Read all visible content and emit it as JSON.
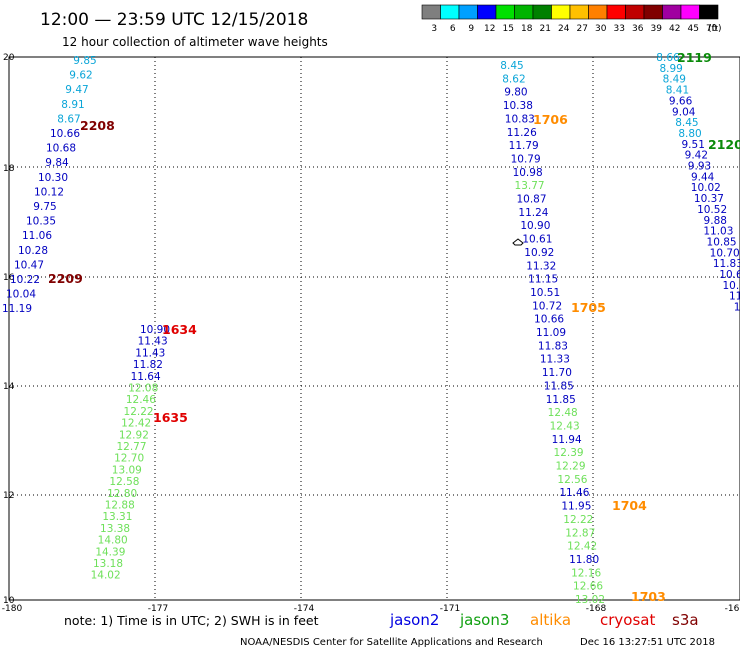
{
  "header": {
    "title": "12:00 — 23:59 UTC 12/15/2018",
    "subtitle": "12 hour collection of altimeter wave heights"
  },
  "legend": {
    "bins": [
      {
        "label": "3",
        "color": "#7f7f7f"
      },
      {
        "label": "6",
        "color": "#00ffff"
      },
      {
        "label": "9",
        "color": "#00a0ff"
      },
      {
        "label": "12",
        "color": "#0000ff"
      },
      {
        "label": "15",
        "color": "#00e000"
      },
      {
        "label": "18",
        "color": "#00b400"
      },
      {
        "label": "21",
        "color": "#008000"
      },
      {
        "label": "24",
        "color": "#ffff00"
      },
      {
        "label": "27",
        "color": "#ffc000"
      },
      {
        "label": "30",
        "color": "#ff8000"
      },
      {
        "label": "33",
        "color": "#ff0000"
      },
      {
        "label": "36",
        "color": "#c00000"
      },
      {
        "label": "39",
        "color": "#800000"
      },
      {
        "label": "42",
        "color": "#a000a0"
      },
      {
        "label": "45",
        "color": "#ff00ff"
      },
      {
        "label": "70",
        "color": "#000000"
      }
    ],
    "unit": "(ft)"
  },
  "axes": {
    "x_ticks": [
      "-180",
      "-177",
      "-174",
      "-171",
      "-168",
      "-16"
    ],
    "y_ticks": [
      "20",
      "18",
      "16",
      "14",
      "12",
      "10"
    ]
  },
  "colors": {
    "dark_blue": "#0000c0",
    "light_blue": "#0aa5d8",
    "light_green": "#6ee05a",
    "green": "#0a8a0a",
    "orange": "#ff8c00",
    "red": "#e00000",
    "maroon": "#800000"
  },
  "tracks": [
    {
      "pass_labels": [
        {
          "text": "2208",
          "color": "#800000"
        },
        {
          "text": "2209",
          "color": "#800000"
        }
      ],
      "points": [
        {
          "v": "9.85",
          "c": "#0aa5d8"
        },
        {
          "v": "9.62",
          "c": "#0aa5d8"
        },
        {
          "v": "9.47",
          "c": "#0aa5d8"
        },
        {
          "v": "8.91",
          "c": "#0aa5d8"
        },
        {
          "v": "8.67",
          "c": "#0aa5d8"
        },
        {
          "v": "10.66",
          "c": "#0000c0"
        },
        {
          "v": "10.68",
          "c": "#0000c0"
        },
        {
          "v": "9.84",
          "c": "#0000c0"
        },
        {
          "v": "10.30",
          "c": "#0000c0"
        },
        {
          "v": "10.12",
          "c": "#0000c0"
        },
        {
          "v": "9.75",
          "c": "#0000c0"
        },
        {
          "v": "10.35",
          "c": "#0000c0"
        },
        {
          "v": "11.06",
          "c": "#0000c0"
        },
        {
          "v": "10.28",
          "c": "#0000c0"
        },
        {
          "v": "10.47",
          "c": "#0000c0"
        },
        {
          "v": "10.22",
          "c": "#0000c0"
        },
        {
          "v": "10.04",
          "c": "#0000c0"
        },
        {
          "v": "11.19",
          "c": "#0000c0"
        }
      ]
    },
    {
      "pass_labels": [
        {
          "text": "1634",
          "color": "#e00000"
        },
        {
          "text": "1635",
          "color": "#e00000"
        }
      ],
      "points": [
        {
          "v": "10.90",
          "c": "#0000c0"
        },
        {
          "v": "11.43",
          "c": "#0000c0"
        },
        {
          "v": "11.43",
          "c": "#0000c0"
        },
        {
          "v": "11.82",
          "c": "#0000c0"
        },
        {
          "v": "11.64",
          "c": "#0000c0"
        },
        {
          "v": "12.08",
          "c": "#6ee05a"
        },
        {
          "v": "12.46",
          "c": "#6ee05a"
        },
        {
          "v": "12.22",
          "c": "#6ee05a"
        },
        {
          "v": "12.42",
          "c": "#6ee05a"
        },
        {
          "v": "12.92",
          "c": "#6ee05a"
        },
        {
          "v": "12.77",
          "c": "#6ee05a"
        },
        {
          "v": "12.70",
          "c": "#6ee05a"
        },
        {
          "v": "13.09",
          "c": "#6ee05a"
        },
        {
          "v": "12.58",
          "c": "#6ee05a"
        },
        {
          "v": "12.80",
          "c": "#6ee05a"
        },
        {
          "v": "12.88",
          "c": "#6ee05a"
        },
        {
          "v": "13.31",
          "c": "#6ee05a"
        },
        {
          "v": "13.38",
          "c": "#6ee05a"
        },
        {
          "v": "14.80",
          "c": "#6ee05a"
        },
        {
          "v": "14.39",
          "c": "#6ee05a"
        },
        {
          "v": "13.18",
          "c": "#6ee05a"
        },
        {
          "v": "14.02",
          "c": "#6ee05a"
        }
      ]
    },
    {
      "pass_labels": [
        {
          "text": "1706",
          "color": "#ff8c00"
        },
        {
          "text": "1705",
          "color": "#ff8c00"
        },
        {
          "text": "1704",
          "color": "#ff8c00"
        },
        {
          "text": "1703",
          "color": "#ff8c00"
        }
      ],
      "points": [
        {
          "v": "8.45",
          "c": "#0aa5d8"
        },
        {
          "v": "8.62",
          "c": "#0aa5d8"
        },
        {
          "v": "9.80",
          "c": "#0000c0"
        },
        {
          "v": "10.38",
          "c": "#0000c0"
        },
        {
          "v": "10.83",
          "c": "#0000c0"
        },
        {
          "v": "11.26",
          "c": "#0000c0"
        },
        {
          "v": "11.79",
          "c": "#0000c0"
        },
        {
          "v": "10.79",
          "c": "#0000c0"
        },
        {
          "v": "10.98",
          "c": "#0000c0"
        },
        {
          "v": "13.77",
          "c": "#6ee05a"
        },
        {
          "v": "10.87",
          "c": "#0000c0"
        },
        {
          "v": "11.24",
          "c": "#0000c0"
        },
        {
          "v": "10.90",
          "c": "#0000c0"
        },
        {
          "v": "10.61",
          "c": "#0000c0"
        },
        {
          "v": "10.92",
          "c": "#0000c0"
        },
        {
          "v": "11.32",
          "c": "#0000c0"
        },
        {
          "v": "11.15",
          "c": "#0000c0"
        },
        {
          "v": "10.51",
          "c": "#0000c0"
        },
        {
          "v": "10.72",
          "c": "#0000c0"
        },
        {
          "v": "10.66",
          "c": "#0000c0"
        },
        {
          "v": "11.09",
          "c": "#0000c0"
        },
        {
          "v": "11.83",
          "c": "#0000c0"
        },
        {
          "v": "11.33",
          "c": "#0000c0"
        },
        {
          "v": "11.70",
          "c": "#0000c0"
        },
        {
          "v": "11.85",
          "c": "#0000c0"
        },
        {
          "v": "11.85",
          "c": "#0000c0"
        },
        {
          "v": "12.48",
          "c": "#6ee05a"
        },
        {
          "v": "12.43",
          "c": "#6ee05a"
        },
        {
          "v": "11.94",
          "c": "#0000c0"
        },
        {
          "v": "12.39",
          "c": "#6ee05a"
        },
        {
          "v": "12.29",
          "c": "#6ee05a"
        },
        {
          "v": "12.56",
          "c": "#6ee05a"
        },
        {
          "v": "11.46",
          "c": "#0000c0"
        },
        {
          "v": "11.95",
          "c": "#0000c0"
        },
        {
          "v": "12.22",
          "c": "#6ee05a"
        },
        {
          "v": "12.87",
          "c": "#6ee05a"
        },
        {
          "v": "12.42",
          "c": "#6ee05a"
        },
        {
          "v": "11.80",
          "c": "#0000c0"
        },
        {
          "v": "12.16",
          "c": "#6ee05a"
        },
        {
          "v": "12.66",
          "c": "#6ee05a"
        },
        {
          "v": "13.02",
          "c": "#6ee05a"
        }
      ]
    },
    {
      "pass_labels": [
        {
          "text": "2119",
          "color": "#0a8a0a"
        },
        {
          "text": "2120",
          "color": "#0a8a0a"
        }
      ],
      "points": [
        {
          "v": "8.66",
          "c": "#0aa5d8"
        },
        {
          "v": "8.99",
          "c": "#0aa5d8"
        },
        {
          "v": "8.49",
          "c": "#0aa5d8"
        },
        {
          "v": "8.41",
          "c": "#0aa5d8"
        },
        {
          "v": "9.66",
          "c": "#0000c0"
        },
        {
          "v": "9.04",
          "c": "#0000c0"
        },
        {
          "v": "8.45",
          "c": "#0aa5d8"
        },
        {
          "v": "8.80",
          "c": "#0aa5d8"
        },
        {
          "v": "9.51",
          "c": "#0000c0"
        },
        {
          "v": "9.42",
          "c": "#0000c0"
        },
        {
          "v": "9.93",
          "c": "#0000c0"
        },
        {
          "v": "9.44",
          "c": "#0000c0"
        },
        {
          "v": "10.02",
          "c": "#0000c0"
        },
        {
          "v": "10.37",
          "c": "#0000c0"
        },
        {
          "v": "10.52",
          "c": "#0000c0"
        },
        {
          "v": "9.88",
          "c": "#0000c0"
        },
        {
          "v": "11.03",
          "c": "#0000c0"
        },
        {
          "v": "10.85",
          "c": "#0000c0"
        },
        {
          "v": "10.70",
          "c": "#0000c0"
        },
        {
          "v": "11.83",
          "c": "#0000c0"
        },
        {
          "v": "10.6",
          "c": "#0000c0"
        },
        {
          "v": "10.5",
          "c": "#0000c0"
        },
        {
          "v": "11.",
          "c": "#0000c0"
        },
        {
          "v": "10",
          "c": "#0000c0"
        },
        {
          "v": "1",
          "c": "#0000c0"
        }
      ]
    }
  ],
  "footer": {
    "note": "note: 1) Time is in UTC; 2) SWH is in feet",
    "satellites": [
      {
        "name": "jason2",
        "color": "#0000e0"
      },
      {
        "name": "jason3",
        "color": "#10a010"
      },
      {
        "name": "altika",
        "color": "#ff8c00"
      },
      {
        "name": "cryosat",
        "color": "#e00000"
      },
      {
        "name": "s3a",
        "color": "#800000"
      }
    ],
    "credit": "NOAA/NESDIS Center for Satellite Applications and Research",
    "timestamp": "Dec 16 13:27:51 UTC 2018"
  }
}
